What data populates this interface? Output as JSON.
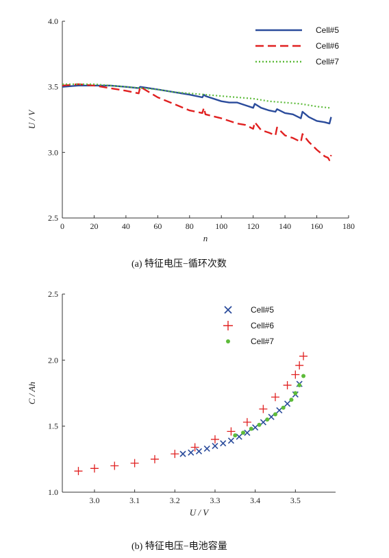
{
  "chart_data": [
    {
      "type": "line",
      "caption": "(a)   特征电压−循环次数",
      "xlabel": "n",
      "ylabel": "U / V",
      "xlim": [
        0,
        180
      ],
      "ylim": [
        2.5,
        4.0
      ],
      "xticks": [
        "0",
        "20",
        "40",
        "60",
        "80",
        "100",
        "120",
        "140",
        "160",
        "180"
      ],
      "yticks": [
        "2.5",
        "3.0",
        "3.5",
        "4.0"
      ],
      "legend_position": "top-right",
      "series": [
        {
          "name": "Cell#5",
          "color": "#2a4b9b",
          "style": "solid",
          "x": [
            0,
            10,
            20,
            30,
            40,
            48,
            49,
            60,
            70,
            80,
            88,
            89,
            90,
            100,
            105,
            110,
            115,
            120,
            121,
            125,
            130,
            134,
            135,
            140,
            145,
            150,
            151,
            155,
            160,
            165,
            168,
            169
          ],
          "y": [
            3.5,
            3.51,
            3.51,
            3.51,
            3.5,
            3.49,
            3.5,
            3.48,
            3.46,
            3.44,
            3.42,
            3.44,
            3.43,
            3.39,
            3.38,
            3.38,
            3.36,
            3.34,
            3.37,
            3.34,
            3.32,
            3.31,
            3.33,
            3.3,
            3.29,
            3.26,
            3.31,
            3.27,
            3.24,
            3.23,
            3.22,
            3.27
          ]
        },
        {
          "name": "Cell#6",
          "color": "#e02020",
          "style": "dashed",
          "x": [
            0,
            10,
            20,
            30,
            40,
            48,
            49,
            60,
            70,
            80,
            88,
            89,
            90,
            100,
            105,
            110,
            115,
            120,
            121,
            125,
            130,
            134,
            135,
            140,
            145,
            150,
            151,
            155,
            160,
            165,
            167,
            168,
            169
          ],
          "y": [
            3.51,
            3.52,
            3.51,
            3.49,
            3.47,
            3.45,
            3.5,
            3.42,
            3.37,
            3.32,
            3.3,
            3.34,
            3.29,
            3.26,
            3.24,
            3.22,
            3.21,
            3.18,
            3.23,
            3.17,
            3.15,
            3.13,
            3.19,
            3.13,
            3.11,
            3.08,
            3.14,
            3.08,
            3.02,
            2.97,
            2.96,
            2.94,
            2.98
          ]
        },
        {
          "name": "Cell#7",
          "color": "#5dbb3a",
          "style": "dotted",
          "x": [
            0,
            10,
            20,
            30,
            40,
            50,
            60,
            70,
            80,
            90,
            100,
            110,
            120,
            130,
            140,
            150,
            160,
            168
          ],
          "y": [
            3.52,
            3.52,
            3.52,
            3.51,
            3.5,
            3.49,
            3.48,
            3.46,
            3.45,
            3.44,
            3.43,
            3.42,
            3.41,
            3.39,
            3.38,
            3.37,
            3.35,
            3.34
          ]
        }
      ]
    },
    {
      "type": "scatter",
      "caption": "(b)   特征电压−电池容量",
      "xlabel": "U / V",
      "ylabel": "C / Ah",
      "xlim": [
        2.92,
        3.6
      ],
      "ylim": [
        1.0,
        2.5
      ],
      "xticks": [
        "3.0",
        "3.1",
        "3.2",
        "3.3",
        "3.4",
        "3.5"
      ],
      "yticks": [
        "1.0",
        "1.5",
        "2.0",
        "2.5"
      ],
      "legend_position": "top-center",
      "series": [
        {
          "name": "Cell#5",
          "color": "#2a4b9b",
          "marker": "x",
          "x": [
            3.22,
            3.24,
            3.26,
            3.28,
            3.3,
            3.32,
            3.34,
            3.36,
            3.38,
            3.4,
            3.42,
            3.44,
            3.46,
            3.48,
            3.5,
            3.51
          ],
          "y": [
            1.29,
            1.3,
            1.31,
            1.33,
            1.35,
            1.37,
            1.39,
            1.42,
            1.45,
            1.49,
            1.53,
            1.57,
            1.62,
            1.67,
            1.74,
            1.82
          ]
        },
        {
          "name": "Cell#6",
          "color": "#e02020",
          "marker": "plus",
          "x": [
            2.96,
            3.0,
            3.05,
            3.1,
            3.15,
            3.2,
            3.25,
            3.3,
            3.34,
            3.38,
            3.42,
            3.45,
            3.48,
            3.5,
            3.51,
            3.52
          ],
          "y": [
            1.16,
            1.18,
            1.2,
            1.22,
            1.25,
            1.29,
            1.34,
            1.4,
            1.46,
            1.53,
            1.63,
            1.72,
            1.81,
            1.89,
            1.96,
            2.03
          ]
        },
        {
          "name": "Cell#7",
          "color": "#5dbb3a",
          "marker": "dot",
          "x": [
            3.35,
            3.37,
            3.39,
            3.41,
            3.43,
            3.45,
            3.47,
            3.49,
            3.5,
            3.51,
            3.52
          ],
          "y": [
            1.43,
            1.45,
            1.48,
            1.51,
            1.55,
            1.59,
            1.64,
            1.7,
            1.75,
            1.81,
            1.88
          ]
        }
      ]
    }
  ]
}
